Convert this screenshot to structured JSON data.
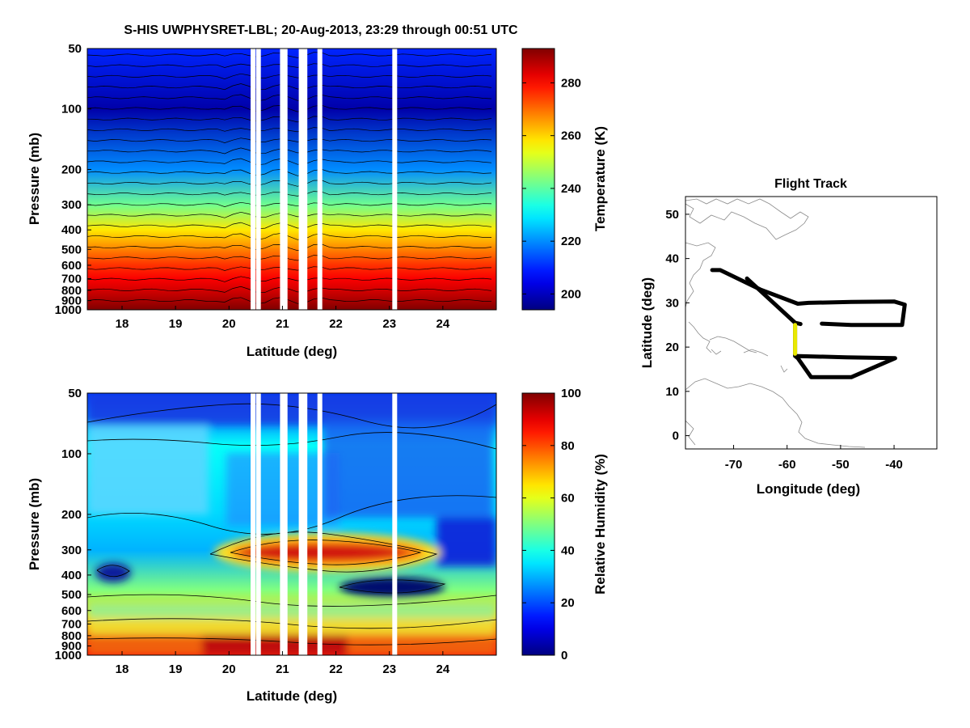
{
  "figure": {
    "title": "S-HIS UWPHYSRET-LBL;   20-Aug-2013, 23:29 through 00:51 UTC"
  },
  "chart_data": [
    {
      "type": "heatmap",
      "name": "temperature-cross-section",
      "xlabel": "Latitude (deg)",
      "ylabel": "Pressure (mb)",
      "xlim": [
        17.35,
        25.0
      ],
      "ylim": [
        50,
        1000
      ],
      "yscale": "log",
      "xticks": [
        18,
        19,
        20,
        21,
        22,
        23,
        24
      ],
      "yticks": [
        50,
        100,
        200,
        300,
        400,
        500,
        600,
        700,
        800,
        900,
        1000
      ],
      "colorbar": {
        "label": "Temperature (K)",
        "range": [
          194,
          293
        ],
        "ticks": [
          200,
          220,
          240,
          260,
          280
        ]
      },
      "field": {
        "pressure_levels": [
          50,
          100,
          200,
          300,
          400,
          500,
          600,
          700,
          800,
          900,
          1000
        ],
        "temperature_K": [
          210,
          198,
          220,
          242,
          258,
          268,
          276,
          281,
          285,
          289,
          293
        ]
      },
      "missing_data_latitudes": [
        20.45,
        20.55,
        21.0,
        21.05,
        21.35,
        21.42,
        21.7,
        23.1
      ]
    },
    {
      "type": "heatmap",
      "name": "relative-humidity-cross-section",
      "xlabel": "Latitude (deg)",
      "ylabel": "Pressure (mb)",
      "xlim": [
        17.35,
        25.0
      ],
      "ylim": [
        50,
        1000
      ],
      "yscale": "log",
      "xticks": [
        18,
        19,
        20,
        21,
        22,
        23,
        24
      ],
      "yticks": [
        50,
        100,
        200,
        300,
        400,
        500,
        600,
        700,
        800,
        900,
        1000
      ],
      "colorbar": {
        "label": "Relative Humidity (%)",
        "range": [
          0,
          100
        ],
        "ticks": [
          0,
          20,
          40,
          60,
          80,
          100
        ]
      },
      "features": [
        {
          "desc": "moist layer near 300 mb",
          "lat_range": [
            19.9,
            23.5
          ],
          "pressure": 300,
          "rh": 90
        },
        {
          "desc": "dry layer near 450 mb",
          "lat_range": [
            21.5,
            23.5
          ],
          "pressure": 450,
          "rh": 8
        },
        {
          "desc": "moist boundary layer",
          "lat_range": [
            17.35,
            25.0
          ],
          "pressure": 900,
          "rh": 80
        }
      ],
      "missing_data_latitudes": [
        20.45,
        20.55,
        21.0,
        21.05,
        21.35,
        21.42,
        21.7,
        23.1
      ]
    },
    {
      "type": "line",
      "name": "flight-track",
      "title": "Flight Track",
      "xlabel": "Longitude (deg)",
      "ylabel": "Latitude (deg)",
      "xlim": [
        -79,
        -32
      ],
      "ylim": [
        -3,
        54
      ],
      "xticks": [
        -70,
        -60,
        -50,
        -40
      ],
      "yticks": [
        0,
        10,
        20,
        30,
        40,
        50
      ],
      "series": [
        {
          "name": "full track",
          "color": "#000000",
          "lon": [
            -74,
            -72.5,
            -65,
            -58,
            -56,
            -48,
            -40,
            -38,
            -38.5,
            -48,
            -53.5
          ],
          "lat": [
            37.4,
            37.4,
            33,
            29.8,
            30,
            30.2,
            30.3,
            29.6,
            25,
            25,
            25.3
          ]
        },
        {
          "name": "track segment 2",
          "color": "#000000",
          "lon": [
            -67.5,
            -58.5,
            -57.5
          ],
          "lat": [
            35.5,
            25.5,
            25.2
          ]
        },
        {
          "name": "track segment 3",
          "color": "#000000",
          "lon": [
            -58.5,
            -58.5,
            -49,
            -39.8,
            -48,
            -55.5,
            -58,
            -58.5
          ],
          "lat": [
            25,
            18,
            17.7,
            17.5,
            13.2,
            13.2,
            17.5,
            18
          ]
        },
        {
          "name": "this segment",
          "color": "#e8e800",
          "lon": [
            -58.5,
            -58.5
          ],
          "lat": [
            25,
            18.5
          ]
        }
      ]
    }
  ]
}
